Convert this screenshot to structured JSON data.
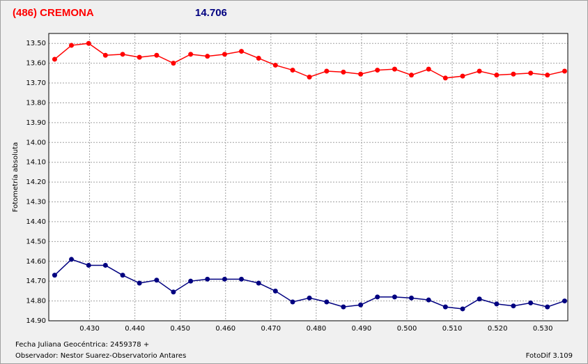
{
  "chart_data": {
    "type": "line",
    "title": "(486) CREMONA",
    "magnitude": "14.706",
    "y_label": "Fotometría absoluta",
    "x_caption": "Fecha Juliana Geocéntrica: 2459378 +",
    "observer": "Observador: Nestor Suarez-Observatorio Antares",
    "software": "FotoDif 3.109",
    "x": [
      0.4223,
      0.426,
      0.4298,
      0.4335,
      0.4373,
      0.441,
      0.4448,
      0.4485,
      0.4523,
      0.456,
      0.4598,
      0.4635,
      0.4673,
      0.471,
      0.4748,
      0.4785,
      0.4823,
      0.486,
      0.4898,
      0.4935,
      0.4973,
      0.501,
      0.5048,
      0.5085,
      0.5123,
      0.516,
      0.5198,
      0.5235,
      0.5273,
      0.531,
      0.5348
    ],
    "series": [
      {
        "color": "#ff0000",
        "values": [
          13.58,
          13.51,
          13.5,
          13.56,
          13.555,
          13.57,
          13.56,
          13.6,
          13.555,
          13.565,
          13.555,
          13.54,
          13.575,
          13.61,
          13.635,
          13.67,
          13.64,
          13.645,
          13.655,
          13.635,
          13.63,
          13.66,
          13.63,
          13.675,
          13.665,
          13.64,
          13.66,
          13.655,
          13.65,
          13.66,
          13.64
        ]
      },
      {
        "color": "#000080",
        "values": [
          14.67,
          14.59,
          14.62,
          14.62,
          14.67,
          14.71,
          14.695,
          14.755,
          14.7,
          14.69,
          14.69,
          14.69,
          14.71,
          14.75,
          14.805,
          14.785,
          14.805,
          14.83,
          14.82,
          14.78,
          14.78,
          14.785,
          14.795,
          14.83,
          14.84,
          14.79,
          14.815,
          14.825,
          14.81,
          14.83,
          14.8
        ]
      }
    ],
    "xlim": [
      0.421,
      0.5355
    ],
    "ylim": [
      13.45,
      14.9
    ],
    "y_reversed": true,
    "grid": true,
    "xticks": [
      {
        "value": 0.43,
        "label": "0.430"
      },
      {
        "value": 0.44,
        "label": "0.440"
      },
      {
        "value": 0.45,
        "label": "0.450"
      },
      {
        "value": 0.46,
        "label": "0.460"
      },
      {
        "value": 0.47,
        "label": "0.470"
      },
      {
        "value": 0.48,
        "label": "0.480"
      },
      {
        "value": 0.49,
        "label": "0.490"
      },
      {
        "value": 0.5,
        "label": "0.500"
      },
      {
        "value": 0.51,
        "label": "0.510"
      },
      {
        "value": 0.52,
        "label": "0.520"
      },
      {
        "value": 0.53,
        "label": "0.530"
      }
    ],
    "yticks": [
      {
        "value": 13.5,
        "label": "13.50"
      },
      {
        "value": 13.6,
        "label": "13.60"
      },
      {
        "value": 13.7,
        "label": "13.70"
      },
      {
        "value": 13.8,
        "label": "13.80"
      },
      {
        "value": 13.9,
        "label": "13.90"
      },
      {
        "value": 14.0,
        "label": "14.00"
      },
      {
        "value": 14.1,
        "label": "14.10"
      },
      {
        "value": 14.2,
        "label": "14.20"
      },
      {
        "value": 14.3,
        "label": "14.30"
      },
      {
        "value": 14.4,
        "label": "14.40"
      },
      {
        "value": 14.5,
        "label": "14.50"
      },
      {
        "value": 14.6,
        "label": "14.60"
      },
      {
        "value": 14.7,
        "label": "14.70"
      },
      {
        "value": 14.8,
        "label": "14.80"
      },
      {
        "value": 14.9,
        "label": "14.90"
      }
    ]
  }
}
